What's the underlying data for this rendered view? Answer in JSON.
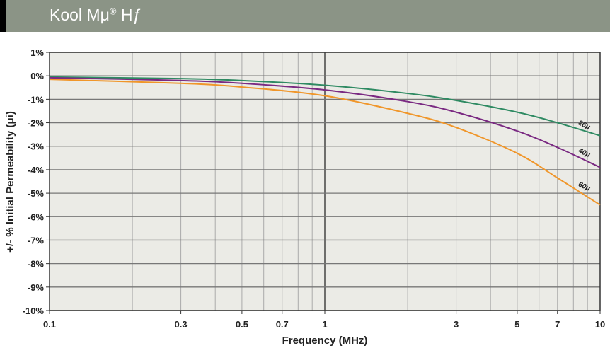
{
  "header": {
    "title": "Kool Mμ",
    "reg": "®",
    "suffix": " Hƒ"
  },
  "chart_data": {
    "type": "line",
    "xlabel": "Frequency (MHz)",
    "ylabel": "+/- % Initial Permeability (μi)",
    "xscale": "log",
    "xlim": [
      0.1,
      10
    ],
    "ylim": [
      -10,
      1
    ],
    "xticks": [
      0.1,
      0.3,
      0.5,
      0.7,
      1,
      3,
      5,
      7,
      10
    ],
    "xtick_labels": [
      "0.1",
      "0.3",
      "0.5",
      "0.7",
      "1",
      "3",
      "5",
      "7",
      "10"
    ],
    "yticks": [
      1,
      0,
      -1,
      -2,
      -3,
      -4,
      -5,
      -6,
      -7,
      -8,
      -9,
      -10
    ],
    "ytick_labels": [
      "1%",
      "0%",
      "-1%",
      "-2%",
      "-3%",
      "-4%",
      "-5%",
      "-6%",
      "-7%",
      "-8%",
      "-9%",
      "-10%"
    ],
    "grid": true,
    "series": [
      {
        "name": "26μ",
        "color": "#2e8a62",
        "x": [
          0.1,
          0.3,
          0.5,
          1,
          2,
          3,
          5,
          7,
          10
        ],
        "y": [
          -0.05,
          -0.12,
          -0.2,
          -0.4,
          -0.75,
          -1.05,
          -1.55,
          -2.0,
          -2.55
        ]
      },
      {
        "name": "40μ",
        "color": "#7a2a82",
        "x": [
          0.1,
          0.3,
          0.5,
          1,
          2,
          3,
          5,
          7,
          10
        ],
        "y": [
          -0.08,
          -0.2,
          -0.32,
          -0.6,
          -1.1,
          -1.55,
          -2.35,
          -3.05,
          -3.9
        ]
      },
      {
        "name": "60μ",
        "color": "#f0962a",
        "x": [
          0.1,
          0.3,
          0.5,
          1,
          2,
          3,
          5,
          7,
          10
        ],
        "y": [
          -0.15,
          -0.32,
          -0.48,
          -0.85,
          -1.6,
          -2.2,
          -3.3,
          -4.35,
          -5.5
        ]
      }
    ]
  }
}
